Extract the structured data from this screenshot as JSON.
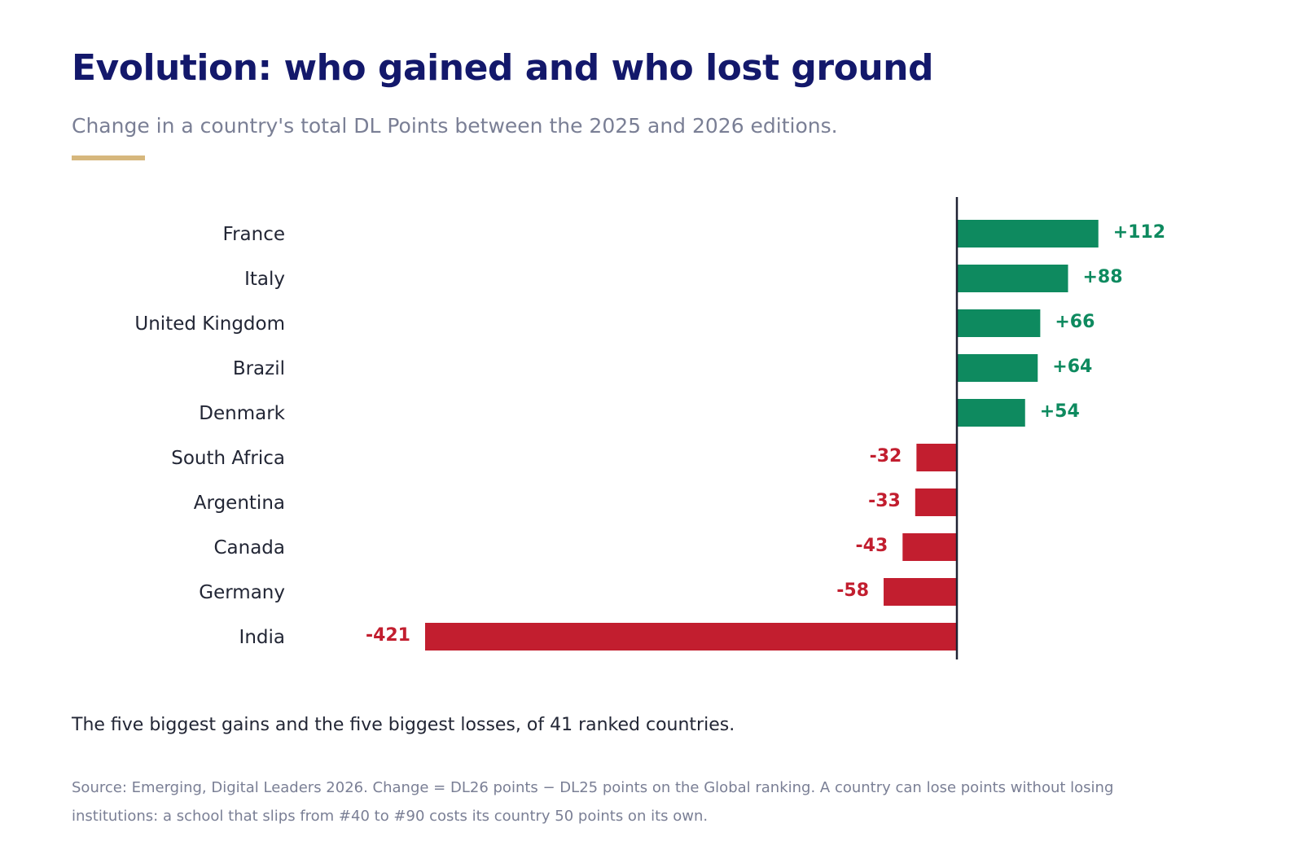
{
  "chart_data": {
    "type": "bar",
    "orientation": "horizontal",
    "title": "Evolution: who gained and who lost ground",
    "subtitle": "Change in a country's total DL Points between the 2025 and 2026 editions.",
    "categories": [
      "France",
      "Italy",
      "United Kingdom",
      "Brazil",
      "Denmark",
      "South Africa",
      "Argentina",
      "Canada",
      "Germany",
      "India"
    ],
    "values": [
      112,
      88,
      66,
      64,
      54,
      -32,
      -33,
      -43,
      -58,
      -421
    ],
    "value_labels": [
      "+112",
      "+88",
      "+66",
      "+64",
      "+54",
      "-32",
      "-33",
      "-43",
      "-58",
      "-421"
    ],
    "xlabel": "",
    "ylabel": "",
    "xlim": [
      -421,
      112
    ],
    "grid": false,
    "legend": "none",
    "colors": {
      "positive": "#0e8a5f",
      "negative": "#c21e2f",
      "zero_line": "#1f2233"
    }
  },
  "caption": "The five biggest gains and the five biggest losses, of 41 ranked countries.",
  "source": "Source: Emerging, Digital Leaders 2026. Change = DL26 points − DL25 points on the Global ranking. A country can lose points without losing institutions: a school that slips from #40 to #90 costs its country 50 points on its own.",
  "colors": {
    "title": "#13186b",
    "subtitle": "#7a7f95",
    "accent_rule": "#d6b77d"
  }
}
